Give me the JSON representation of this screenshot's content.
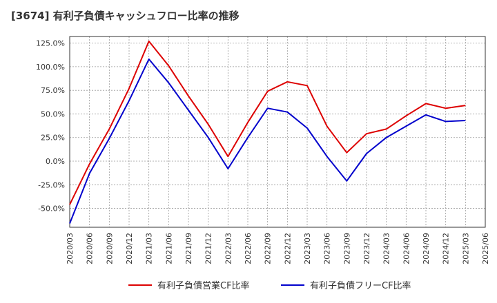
{
  "chart_data": {
    "type": "line",
    "title": "[3674]  有利子負債キャッシュフロー比率の推移",
    "x": [
      "2020/03",
      "2020/06",
      "2020/09",
      "2020/12",
      "2021/03",
      "2021/06",
      "2021/09",
      "2021/12",
      "2022/03",
      "2022/06",
      "2022/09",
      "2022/12",
      "2023/03",
      "2023/06",
      "2023/09",
      "2023/12",
      "2024/03",
      "2024/06",
      "2024/09",
      "2024/12",
      "2025/03",
      "2025/06"
    ],
    "series": [
      {
        "name": "有利子負債営業CF比率",
        "color": "#dd0000",
        "values": [
          -46,
          -3,
          34,
          77,
          127,
          101,
          69,
          39,
          5,
          41,
          74,
          84,
          80,
          37,
          9,
          29,
          34,
          48,
          61,
          56,
          59,
          null
        ]
      },
      {
        "name": "有利子負債フリーCF比率",
        "color": "#0000cc",
        "values": [
          -66,
          -13,
          24,
          64,
          108,
          83,
          54,
          25,
          -8,
          25,
          56,
          52,
          35,
          5,
          -21,
          8,
          25,
          37,
          49,
          42,
          43,
          null
        ]
      }
    ],
    "ylim": [
      -70,
      132
    ],
    "yticks": [
      -50,
      -25,
      0,
      25,
      50,
      75,
      100,
      125
    ],
    "ytick_labels": [
      "-50.0%",
      "-25.0%",
      "0.0%",
      "25.0%",
      "50.0%",
      "75.0%",
      "100.0%",
      "125.0%"
    ],
    "grid": true,
    "legend_position": "bottom"
  }
}
